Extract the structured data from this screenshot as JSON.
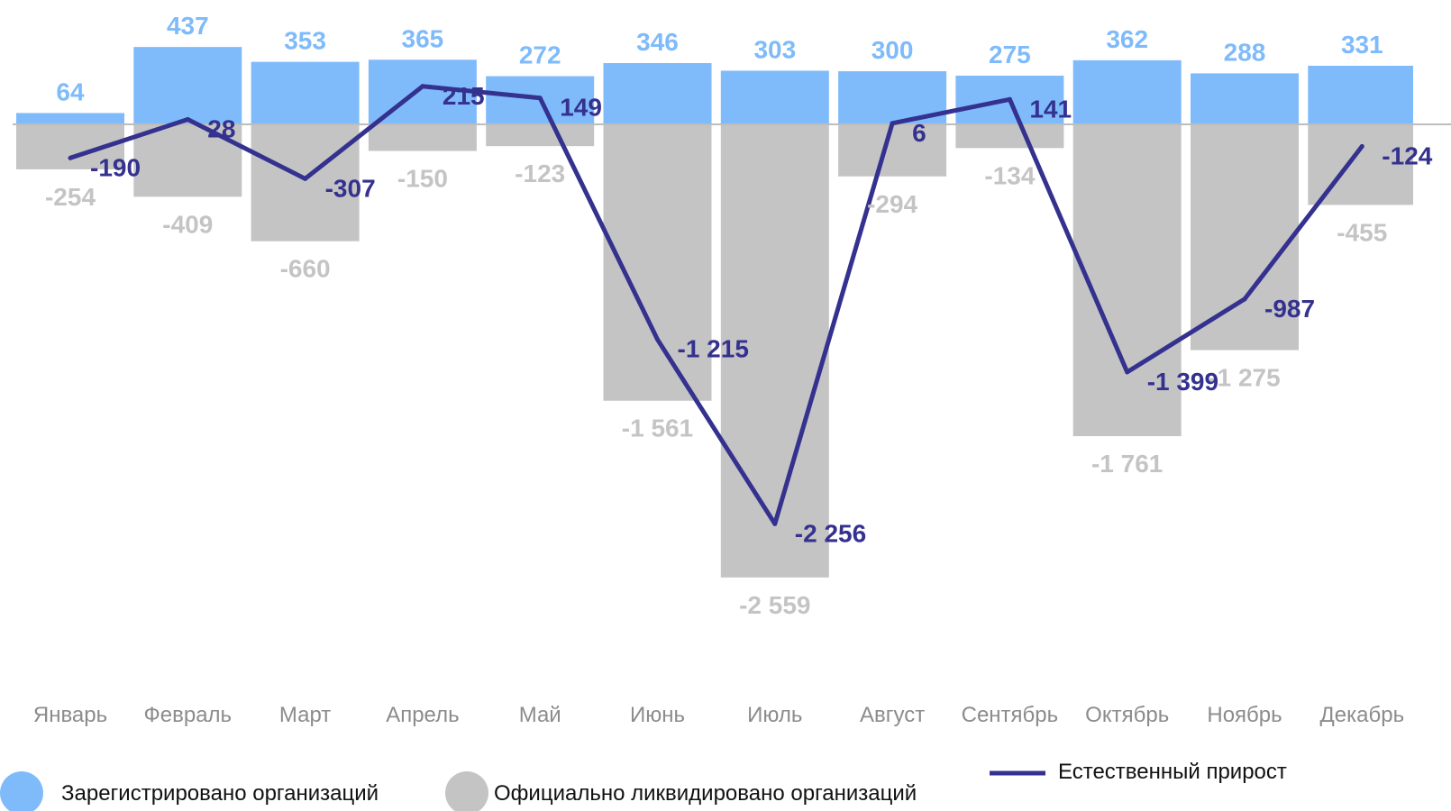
{
  "chart_data": {
    "type": "bar",
    "categories": [
      "Январь",
      "Февраль",
      "Март",
      "Апрель",
      "Май",
      "Июнь",
      "Июль",
      "Август",
      "Сентябрь",
      "Октябрь",
      "Ноябрь",
      "Декабрь"
    ],
    "series": [
      {
        "name": "Зарегистрировано организаций",
        "type": "bar",
        "color": "#7fbbfb",
        "values": [
          64,
          437,
          353,
          365,
          272,
          346,
          303,
          300,
          275,
          362,
          288,
          331
        ],
        "labels": [
          "64",
          "437",
          "353",
          "365",
          "272",
          "346",
          "303",
          "300",
          "275",
          "362",
          "288",
          "331"
        ]
      },
      {
        "name": "Официально ликвидировано организаций",
        "type": "bar",
        "color": "#c4c4c4",
        "values": [
          -254,
          -409,
          -660,
          -150,
          -123,
          -1561,
          -2559,
          -294,
          -134,
          -1761,
          -1275,
          -455
        ],
        "labels": [
          "-254",
          "-409",
          "-660",
          "-150",
          "-123",
          "-1 561",
          "-2 559",
          "-294",
          "-134",
          "-1 761",
          "-1 275",
          "-455"
        ]
      },
      {
        "name": "Естественный прирост",
        "type": "line",
        "color": "#34318f",
        "values": [
          -190,
          28,
          -307,
          215,
          149,
          -1215,
          -2256,
          6,
          141,
          -1399,
          -987,
          -124
        ],
        "labels": [
          "-190",
          "28",
          "-307",
          "215",
          "149",
          "-1 215",
          "-2 256",
          "6",
          "141",
          "-1 399",
          "-987",
          "-124"
        ]
      }
    ],
    "ylim": [
      -3100,
      700
    ],
    "grid": false,
    "zero_line": true,
    "legend": "bottom"
  }
}
